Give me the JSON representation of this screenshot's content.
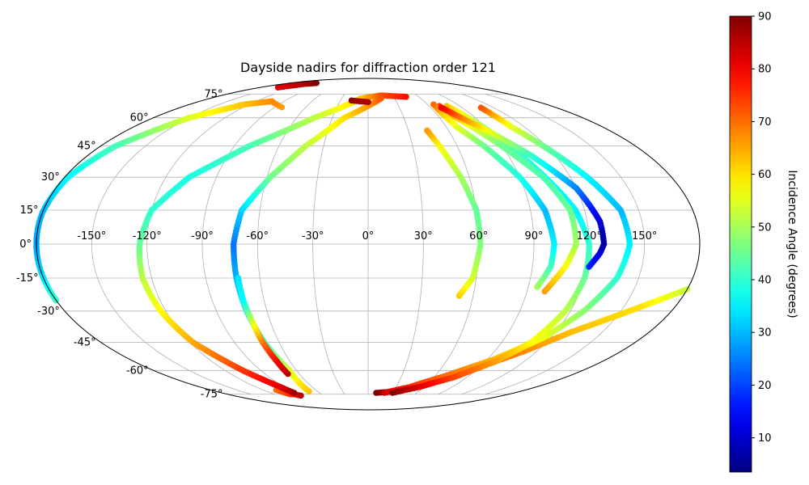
{
  "chart_data": {
    "type": "scatter",
    "projection": "mollweide",
    "title": "Dayside nadirs for diffraction order 121",
    "lon_ticks": [
      -150,
      -120,
      -90,
      -60,
      -30,
      0,
      30,
      60,
      90,
      120,
      150
    ],
    "lon_tick_labels": [
      "-150°",
      "-120°",
      "-90°",
      "-60°",
      "-30°",
      "0°",
      "30°",
      "60°",
      "90°",
      "120°",
      "150°"
    ],
    "lat_ticks": [
      -75,
      -60,
      -45,
      -30,
      -15,
      0,
      15,
      30,
      45,
      60,
      75
    ],
    "lat_tick_labels": [
      "-75°",
      "-60°",
      "-45°",
      "-30°",
      "-15°",
      "0°",
      "15°",
      "30°",
      "45°",
      "60°",
      "75°"
    ],
    "grid": true,
    "colorbar": {
      "label": "Incidence Angle (degrees)",
      "colormap": "jet",
      "range": [
        3.5,
        90
      ],
      "ticks": [
        10,
        20,
        30,
        40,
        50,
        60,
        70,
        80,
        90
      ],
      "tick_labels": [
        "10",
        "20",
        "30",
        "40",
        "50",
        "60",
        "70",
        "80",
        "90"
      ]
    },
    "tracks": [
      {
        "points": [
          [
            -83,
            66.2,
            66
          ],
          [
            -103,
            70,
            68
          ],
          [
            -125,
            68,
            63
          ],
          [
            -150,
            60,
            55
          ],
          [
            -170,
            45,
            42
          ],
          [
            -178,
            30,
            36
          ],
          [
            -180,
            14,
            30
          ],
          [
            -180,
            0,
            28
          ],
          [
            -180,
            -14,
            33
          ],
          [
            -180,
            -25,
            40
          ]
        ]
      },
      {
        "points": [
          [
            -150,
            80,
            82
          ],
          [
            -135,
            83,
            85
          ],
          [
            -120,
            84,
            90
          ]
        ]
      },
      {
        "points": [
          [
            -105,
            -72,
            70
          ],
          [
            -100,
            -75,
            75
          ],
          [
            -95,
            -75,
            78
          ],
          [
            -90,
            -76,
            85
          ]
        ]
      },
      {
        "points": [
          [
            -91,
            -74,
            88
          ],
          [
            -94,
            -70,
            82
          ],
          [
            -105,
            -60,
            75
          ],
          [
            -118,
            -45,
            65
          ],
          [
            -123,
            -30,
            58
          ],
          [
            -125,
            -15,
            52
          ],
          [
            -124,
            0,
            45
          ],
          [
            -120,
            15,
            40
          ],
          [
            -106,
            30,
            38
          ],
          [
            -80,
            45,
            42
          ],
          [
            -45,
            60,
            52
          ],
          [
            -8,
            72,
            62
          ],
          [
            15,
            74,
            72
          ],
          [
            45,
            73,
            78
          ]
        ]
      },
      {
        "points": [
          [
            -70,
            -73,
            63
          ],
          [
            -66,
            -60,
            55
          ],
          [
            -70,
            -45,
            40
          ],
          [
            -72,
            -30,
            33
          ],
          [
            -73,
            -15,
            30
          ],
          [
            -73,
            0,
            24
          ],
          [
            -70,
            15,
            32
          ],
          [
            -58,
            30,
            45
          ],
          [
            -42,
            45,
            52
          ],
          [
            -20,
            60,
            60
          ],
          [
            0,
            67,
            66
          ],
          [
            15,
            72,
            72
          ]
        ]
      },
      {
        "points": [
          [
            -18,
            70.5,
            88
          ],
          [
            0,
            69.5,
            86
          ]
        ]
      },
      {
        "points": [
          [
            -70,
            -62,
            85
          ],
          [
            -70,
            -55,
            80
          ],
          [
            -71,
            -45,
            70
          ],
          [
            -71,
            -35,
            55
          ],
          [
            -72,
            -25,
            36
          ],
          [
            -72,
            -15,
            34
          ]
        ]
      },
      {
        "points": [
          [
            10,
            -74,
            90
          ],
          [
            33,
            -73,
            85
          ],
          [
            60,
            -68,
            80
          ],
          [
            85,
            -60,
            75
          ],
          [
            110,
            -50,
            68
          ],
          [
            130,
            -40,
            63
          ],
          [
            160,
            -28,
            60
          ],
          [
            180,
            -20,
            53
          ]
        ]
      },
      {
        "points": [
          [
            20,
            -74,
            83
          ],
          [
            45,
            -70,
            76
          ],
          [
            70,
            -63,
            70
          ],
          [
            95,
            -54,
            64
          ],
          [
            115,
            -43,
            56
          ],
          [
            128,
            -30,
            48
          ],
          [
            138,
            -15,
            40
          ],
          [
            142,
            0,
            35
          ],
          [
            140,
            15,
            30
          ],
          [
            130,
            30,
            35
          ],
          [
            118,
            45,
            45
          ],
          [
            110,
            55,
            55
          ],
          [
            108,
            62,
            65
          ],
          [
            108,
            66,
            72
          ]
        ]
      },
      {
        "points": [
          [
            30,
            -74,
            90
          ],
          [
            55,
            -70,
            82
          ],
          [
            78,
            -64,
            74
          ],
          [
            98,
            -55,
            66
          ],
          [
            110,
            -45,
            58
          ],
          [
            117,
            -30,
            52
          ],
          [
            120,
            -15,
            45
          ],
          [
            120,
            0,
            40
          ],
          [
            115,
            15,
            35
          ],
          [
            105,
            30,
            36
          ],
          [
            95,
            45,
            42
          ],
          [
            88,
            55,
            50
          ],
          [
            82,
            62,
            56
          ],
          [
            77,
            67,
            63
          ]
        ]
      },
      {
        "points": [
          [
            100,
            -21,
            66
          ],
          [
            108,
            -10,
            58
          ],
          [
            113,
            0,
            50
          ],
          [
            112,
            15,
            45
          ],
          [
            104,
            30,
            42
          ],
          [
            90,
            45,
            45
          ],
          [
            80,
            55,
            55
          ],
          [
            72,
            62,
            65
          ],
          [
            70,
            67,
            75
          ]
        ]
      },
      {
        "points": [
          [
            95,
            -19,
            50
          ],
          [
            100,
            -10,
            42
          ],
          [
            101,
            0,
            35
          ],
          [
            98,
            15,
            30
          ],
          [
            90,
            30,
            38
          ],
          [
            78,
            45,
            45
          ],
          [
            68,
            55,
            55
          ],
          [
            65,
            63,
            62
          ],
          [
            66,
            68,
            70
          ]
        ]
      },
      {
        "points": [
          [
            121,
            -10,
            18
          ],
          [
            126,
            -4,
            12
          ],
          [
            128,
            0,
            6
          ],
          [
            127,
            10,
            10
          ],
          [
            120,
            25,
            25
          ],
          [
            105,
            40,
            40
          ],
          [
            90,
            52,
            55
          ],
          [
            78,
            60,
            68
          ],
          [
            70,
            66,
            80
          ]
        ]
      },
      {
        "points": [
          [
            52,
            -23,
            62
          ],
          [
            58,
            -15,
            54
          ],
          [
            61,
            0,
            47
          ],
          [
            60,
            15,
            44
          ],
          [
            55,
            30,
            50
          ],
          [
            48,
            45,
            57
          ],
          [
            44,
            53,
            66
          ]
        ]
      }
    ]
  }
}
